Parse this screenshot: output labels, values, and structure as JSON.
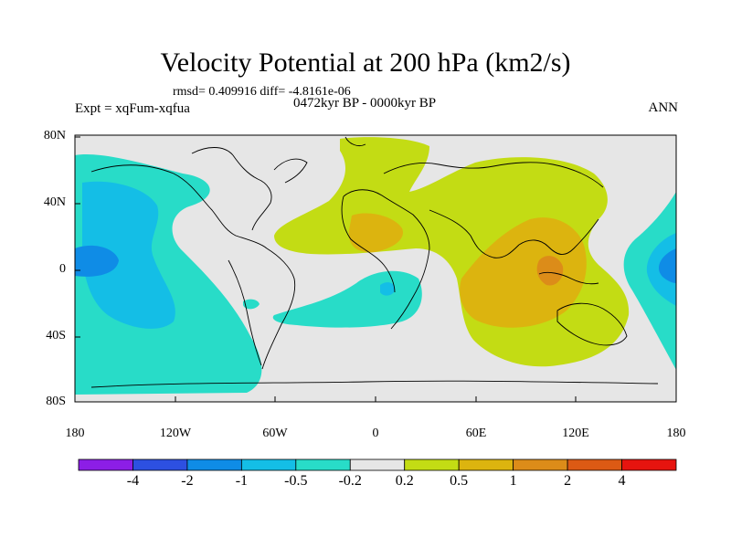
{
  "header": {
    "title": "Velocity Potential at 200 hPa (km2/s)",
    "stats": "rmsd= 0.409916 diff= -4.8161e-06",
    "experiment": "Expt = xqFum-xqfua",
    "period": "0472kyr BP - 0000kyr BP",
    "season": "ANN"
  },
  "map": {
    "lat_ticks": [
      "80N",
      "40N",
      "0",
      "40S",
      "80S"
    ],
    "lon_ticks": [
      "180",
      "120W",
      "60W",
      "0",
      "60E",
      "120E",
      "180"
    ]
  },
  "colorbar": {
    "colors": [
      "#8c1ee6",
      "#2d50e1",
      "#0f8ce6",
      "#14bee6",
      "#28dcc8",
      "#e6e6e6",
      "#c3dc14",
      "#dcb40f",
      "#dc8c19",
      "#dc5a14",
      "#e6140f"
    ],
    "labels": [
      "-4",
      "-2",
      "-1",
      "-0.5",
      "-0.2",
      "0.2",
      "0.5",
      "1",
      "2",
      "4"
    ]
  }
}
